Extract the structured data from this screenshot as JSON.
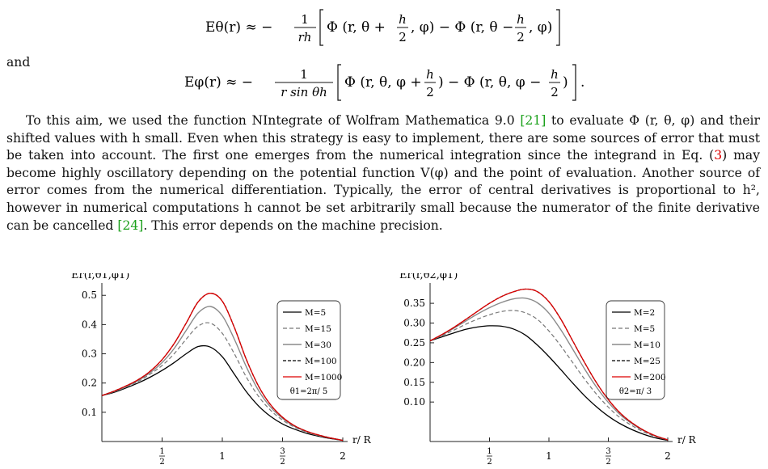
{
  "equations": {
    "e_theta": {
      "lhs": "Eθ(r) ≈ −",
      "frac_num": "1",
      "frac_den": "rh",
      "open": "Φ (r, θ +",
      "h_num": "h",
      "h_den": "2",
      "mid": ", φ) − Φ (r, θ −",
      "close": ", φ)"
    },
    "and": "and",
    "e_phi": {
      "lhs": "Eφ(r) ≈ −",
      "frac_num": "1",
      "frac_den": "r sin θh",
      "open": "Φ (r, θ, φ +",
      "h_num": "h",
      "h_den": "2",
      "mid": ") − Φ (r, θ, φ −",
      "close": ")"
    },
    "e_phi_trailing": "."
  },
  "paragraph": {
    "p1": "To this aim, we used the function NIntegrate of Wolfram Mathematica 9.0 ",
    "ref21": "[21]",
    "p2": " to evaluate Φ (r, θ, φ) and their shifted values with h small. Even when this strategy is easy to implement, there are some sources of error that must be taken into account. The first one emerges from the numerical integration since the integrand in Eq. (",
    "ref3": "3",
    "p3": ") may become highly oscillatory depending on the potential function V(φ) and the point of evaluation. Another source of error comes from the numerical differentiation. Typically, the error of central derivatives is proportional to h², however in numerical computations h cannot be set arbitrarily small because the numerator of the finite derivative can be cancelled ",
    "ref24": "[24]",
    "p4": ". This error depends on the machine precision."
  },
  "chart_data": [
    {
      "type": "line",
      "ylabel": "Er(r,θ1,φ1)",
      "xlabel": "r/ R",
      "xlim": [
        0.0,
        2.0
      ],
      "ylim": [
        0.0,
        0.52
      ],
      "xticks": [
        {
          "value": 0.5,
          "num": "1",
          "den": "2"
        },
        {
          "value": 1.0,
          "label": "1"
        },
        {
          "value": 1.5,
          "num": "3",
          "den": "2"
        },
        {
          "value": 2.0,
          "label": "2"
        }
      ],
      "yticks": [
        {
          "value": 0.1,
          "label": "0.1"
        },
        {
          "value": 0.2,
          "label": "0.2"
        },
        {
          "value": 0.3,
          "label": "0.3"
        },
        {
          "value": 0.4,
          "label": "0.4"
        },
        {
          "value": 0.5,
          "label": "0.5"
        }
      ],
      "legend_position": "top-right",
      "legend_note": "θ1=2π/ 5",
      "grid": false,
      "series": [
        {
          "name": "M=5",
          "color": "#000000",
          "dash": "",
          "width": 1.3,
          "x": [
            0,
            0.1,
            0.2,
            0.3,
            0.4,
            0.5,
            0.6,
            0.7,
            0.8,
            0.9,
            1.0,
            1.1,
            1.2,
            1.3,
            1.4,
            1.5,
            1.6,
            1.7,
            1.8,
            1.9,
            2.0
          ],
          "y": [
            0.157,
            0.168,
            0.183,
            0.2,
            0.22,
            0.243,
            0.27,
            0.3,
            0.325,
            0.323,
            0.29,
            0.23,
            0.17,
            0.122,
            0.086,
            0.06,
            0.042,
            0.028,
            0.018,
            0.01,
            0.004
          ]
        },
        {
          "name": "M=15",
          "color": "#777777",
          "dash": "5,3",
          "width": 1.2,
          "x": [
            0,
            0.1,
            0.2,
            0.3,
            0.4,
            0.5,
            0.6,
            0.7,
            0.8,
            0.9,
            1.0,
            1.1,
            1.2,
            1.3,
            1.4,
            1.5,
            1.6,
            1.7,
            1.8,
            1.9,
            2.0
          ],
          "y": [
            0.157,
            0.17,
            0.186,
            0.205,
            0.23,
            0.26,
            0.3,
            0.35,
            0.395,
            0.405,
            0.37,
            0.3,
            0.22,
            0.155,
            0.107,
            0.073,
            0.049,
            0.032,
            0.02,
            0.011,
            0.004
          ]
        },
        {
          "name": "M=30",
          "color": "#8a8a8a",
          "dash": "",
          "width": 1.4,
          "x": [
            0,
            0.1,
            0.2,
            0.3,
            0.4,
            0.5,
            0.6,
            0.7,
            0.8,
            0.9,
            1.0,
            1.1,
            1.2,
            1.3,
            1.4,
            1.5,
            1.6,
            1.7,
            1.8,
            1.9,
            2.0
          ],
          "y": [
            0.157,
            0.171,
            0.188,
            0.208,
            0.235,
            0.27,
            0.318,
            0.38,
            0.44,
            0.462,
            0.43,
            0.35,
            0.255,
            0.175,
            0.118,
            0.079,
            0.052,
            0.034,
            0.021,
            0.012,
            0.004
          ]
        },
        {
          "name": "M=100",
          "color": "#000000",
          "dash": "4,2",
          "width": 1.3,
          "x": [
            0,
            0.1,
            0.2,
            0.3,
            0.4,
            0.5,
            0.6,
            0.7,
            0.8,
            0.9,
            1.0,
            1.1,
            1.2,
            1.3,
            1.4,
            1.5,
            1.6,
            1.7,
            1.8,
            1.9,
            2.0
          ],
          "y": [
            0.157,
            0.172,
            0.19,
            0.211,
            0.24,
            0.28,
            0.335,
            0.405,
            0.478,
            0.507,
            0.48,
            0.39,
            0.28,
            0.19,
            0.126,
            0.083,
            0.054,
            0.035,
            0.022,
            0.012,
            0.004
          ]
        },
        {
          "name": "M=1000",
          "color": "#dd0000",
          "dash": "",
          "width": 1.3,
          "x": [
            0,
            0.1,
            0.2,
            0.3,
            0.4,
            0.5,
            0.6,
            0.7,
            0.8,
            0.9,
            1.0,
            1.1,
            1.2,
            1.3,
            1.4,
            1.5,
            1.6,
            1.7,
            1.8,
            1.9,
            2.0
          ],
          "y": [
            0.157,
            0.172,
            0.19,
            0.211,
            0.24,
            0.28,
            0.335,
            0.405,
            0.478,
            0.507,
            0.48,
            0.39,
            0.28,
            0.19,
            0.126,
            0.083,
            0.054,
            0.035,
            0.022,
            0.012,
            0.004
          ]
        }
      ]
    },
    {
      "type": "line",
      "ylabel": "Er(r,θ2,φ1)",
      "xlabel": "r/ R",
      "xlim": [
        0.0,
        2.0
      ],
      "ylim": [
        0.0,
        0.385
      ],
      "xticks": [
        {
          "value": 0.5,
          "num": "1",
          "den": "2"
        },
        {
          "value": 1.0,
          "label": "1"
        },
        {
          "value": 1.5,
          "num": "3",
          "den": "2"
        },
        {
          "value": 2.0,
          "label": "2"
        }
      ],
      "yticks": [
        {
          "value": 0.1,
          "label": "0.10"
        },
        {
          "value": 0.15,
          "label": "0.15"
        },
        {
          "value": 0.2,
          "label": "0.20"
        },
        {
          "value": 0.25,
          "label": "0.25"
        },
        {
          "value": 0.3,
          "label": "0.30"
        },
        {
          "value": 0.35,
          "label": "0.35"
        }
      ],
      "legend_position": "top-right",
      "legend_note": "θ2=π/ 3",
      "grid": false,
      "series": [
        {
          "name": "M=2",
          "color": "#000000",
          "dash": "",
          "width": 1.3,
          "x": [
            0,
            0.1,
            0.2,
            0.3,
            0.4,
            0.5,
            0.6,
            0.7,
            0.8,
            0.9,
            1.0,
            1.1,
            1.2,
            1.3,
            1.4,
            1.5,
            1.6,
            1.7,
            1.8,
            1.9,
            2.0
          ],
          "y": [
            0.255,
            0.265,
            0.275,
            0.284,
            0.29,
            0.293,
            0.292,
            0.285,
            0.27,
            0.245,
            0.215,
            0.182,
            0.148,
            0.116,
            0.088,
            0.064,
            0.045,
            0.03,
            0.018,
            0.009,
            0.003
          ]
        },
        {
          "name": "M=5",
          "color": "#777777",
          "dash": "5,3",
          "width": 1.2,
          "x": [
            0,
            0.1,
            0.2,
            0.3,
            0.4,
            0.5,
            0.6,
            0.7,
            0.8,
            0.9,
            1.0,
            1.1,
            1.2,
            1.3,
            1.4,
            1.5,
            1.6,
            1.7,
            1.8,
            1.9,
            2.0
          ],
          "y": [
            0.255,
            0.268,
            0.282,
            0.297,
            0.31,
            0.321,
            0.329,
            0.332,
            0.326,
            0.31,
            0.28,
            0.242,
            0.2,
            0.158,
            0.12,
            0.087,
            0.06,
            0.04,
            0.024,
            0.012,
            0.004
          ]
        },
        {
          "name": "M=10",
          "color": "#8a8a8a",
          "dash": "",
          "width": 1.4,
          "x": [
            0,
            0.1,
            0.2,
            0.3,
            0.4,
            0.5,
            0.6,
            0.7,
            0.8,
            0.9,
            1.0,
            1.1,
            1.2,
            1.3,
            1.4,
            1.5,
            1.6,
            1.7,
            1.8,
            1.9,
            2.0
          ],
          "y": [
            0.255,
            0.27,
            0.287,
            0.305,
            0.323,
            0.339,
            0.352,
            0.361,
            0.363,
            0.352,
            0.325,
            0.283,
            0.234,
            0.184,
            0.138,
            0.099,
            0.068,
            0.045,
            0.027,
            0.014,
            0.004
          ]
        },
        {
          "name": "M=25",
          "color": "#000000",
          "dash": "4,2",
          "width": 1.3,
          "x": [
            0,
            0.1,
            0.2,
            0.3,
            0.4,
            0.5,
            0.6,
            0.7,
            0.8,
            0.9,
            1.0,
            1.1,
            1.2,
            1.3,
            1.4,
            1.5,
            1.6,
            1.7,
            1.8,
            1.9,
            2.0
          ],
          "y": [
            0.255,
            0.271,
            0.289,
            0.309,
            0.33,
            0.35,
            0.367,
            0.379,
            0.386,
            0.38,
            0.354,
            0.31,
            0.255,
            0.2,
            0.149,
            0.106,
            0.072,
            0.047,
            0.028,
            0.014,
            0.004
          ]
        },
        {
          "name": "M=200",
          "color": "#dd0000",
          "dash": "",
          "width": 1.3,
          "x": [
            0,
            0.1,
            0.2,
            0.3,
            0.4,
            0.5,
            0.6,
            0.7,
            0.8,
            0.9,
            1.0,
            1.1,
            1.2,
            1.3,
            1.4,
            1.5,
            1.6,
            1.7,
            1.8,
            1.9,
            2.0
          ],
          "y": [
            0.255,
            0.271,
            0.289,
            0.309,
            0.33,
            0.35,
            0.367,
            0.379,
            0.386,
            0.38,
            0.354,
            0.31,
            0.255,
            0.2,
            0.149,
            0.106,
            0.072,
            0.047,
            0.028,
            0.014,
            0.004
          ]
        }
      ]
    }
  ]
}
